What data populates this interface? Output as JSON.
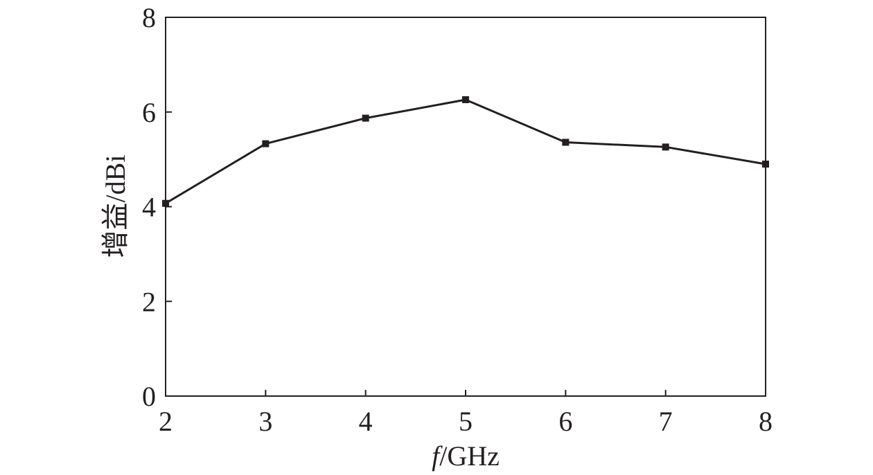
{
  "chart_data": {
    "type": "line",
    "title": "",
    "xlabel": "f/GHz",
    "xlabel_parts": {
      "variable": "f",
      "unit": "/GHz"
    },
    "ylabel": "增益/dBi",
    "xlim": [
      2,
      8
    ],
    "ylim": [
      0,
      8
    ],
    "x_ticks": [
      2,
      3,
      4,
      5,
      6,
      7,
      8
    ],
    "y_ticks": [
      0,
      2,
      4,
      6,
      8
    ],
    "x_tick_labels": [
      "2",
      "3",
      "4",
      "5",
      "6",
      "7",
      "8"
    ],
    "y_tick_labels": [
      "0",
      "2",
      "4",
      "6",
      "8"
    ],
    "grid": false,
    "legend": "none",
    "series": [
      {
        "x": [
          2,
          3,
          4,
          5,
          6,
          7,
          8
        ],
        "values": [
          4.07,
          5.33,
          5.87,
          6.26,
          5.36,
          5.26,
          4.9
        ],
        "marker": "square",
        "color": "#231f20"
      }
    ]
  }
}
